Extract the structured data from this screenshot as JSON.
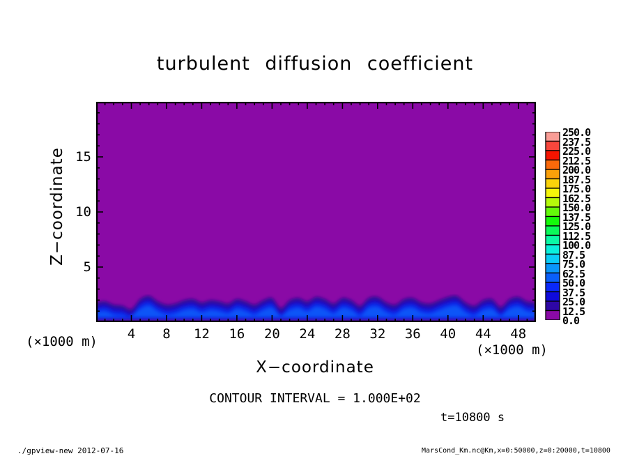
{
  "chart_data": {
    "type": "filled_contour_heatmap",
    "title": "turbulent diffusion coefficient",
    "xlabel": "X−coordinate",
    "ylabel": "Z−coordinate",
    "x_units": "(×1000 m)",
    "z_units": "(×1000 m)",
    "x_range": [
      0,
      50
    ],
    "z_range": [
      0,
      20
    ],
    "x_major_step": 4,
    "x_minor_step": 1,
    "z_major_step": 5,
    "z_minor_step": 1,
    "x_tick_labels": [
      "4",
      "8",
      "12",
      "16",
      "20",
      "24",
      "28",
      "32",
      "36",
      "40",
      "44",
      "48"
    ],
    "z_tick_labels": [
      "5",
      "10",
      "15"
    ],
    "contour_interval_label": "CONTOUR INTERVAL = 1.000E+02",
    "time_label": "t=10800 s",
    "background_color": "#8A0AA6",
    "colorbar": {
      "min": 0,
      "max": 250,
      "cell_size": 12.5,
      "labels_top_to_bottom": [
        "250.0",
        "237.5",
        "225.0",
        "212.5",
        "200.0",
        "187.5",
        "175.0",
        "162.5",
        "150.0",
        "137.5",
        "125.0",
        "112.5",
        "100.0",
        "87.5",
        "75.0",
        "62.5",
        "50.0",
        "37.5",
        "25.0",
        "12.5",
        "0.0"
      ],
      "cell_colors_bottom_to_top": [
        "#8A0AA6",
        "#2E07A5",
        "#0F0ADC",
        "#0A28FA",
        "#0A5FFA",
        "#0A96FA",
        "#0ACDF7",
        "#0AF0DC",
        "#0AFAA5",
        "#0AFA5A",
        "#14FA0A",
        "#64FA0A",
        "#B4FA0A",
        "#F5F50A",
        "#FAD20A",
        "#FAA00A",
        "#FA690A",
        "#F51400",
        "#F7463C",
        "#F99D96"
      ]
    },
    "band": {
      "x_step": 1,
      "top_z": [
        1.8,
        1.9,
        1.6,
        1.5,
        1.2,
        2.1,
        2.4,
        1.9,
        1.6,
        1.7,
        2.0,
        2.1,
        1.8,
        2.0,
        1.9,
        1.7,
        2.1,
        1.9,
        1.6,
        2.0,
        2.2,
        1.3,
        2.0,
        2.2,
        1.9,
        2.3,
        2.1,
        1.7,
        2.2,
        2.0,
        1.5,
        2.2,
        2.3,
        1.8,
        1.6,
        2.1,
        2.2,
        1.8,
        1.7,
        2.0,
        2.3,
        2.4,
        1.8,
        1.5,
        2.0,
        2.1,
        1.4,
        2.1,
        2.3,
        1.9,
        1.8
      ],
      "layers": [
        {
          "color": "#33089B",
          "top_offset": 0.0,
          "bottom_z": 0.12
        },
        {
          "color": "#1511CC",
          "top_offset": 0.33,
          "bottom_z": 0.22
        },
        {
          "color": "#0A2FEE",
          "top_offset": 0.66,
          "bottom_z": 0.34
        },
        {
          "color": "#0F55F7",
          "top_offset": 0.98,
          "bottom_z": 0.5
        }
      ]
    },
    "footer_left": "./gpview-new  2012-07-16",
    "footer_right": "MarsCond_Km.nc@Km,x=0:50000,z=0:20000,t=10800"
  }
}
